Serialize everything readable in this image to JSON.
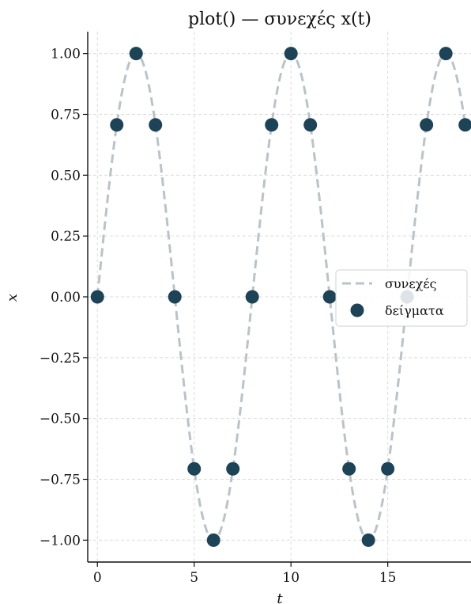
{
  "chart_data": {
    "type": "line",
    "title": "plot() — συνεχές x(t)",
    "xlabel": "t",
    "ylabel": "x",
    "xlim": [
      -0.5,
      19.3
    ],
    "ylim": [
      -1.09,
      1.09
    ],
    "xticks": [
      0,
      5,
      10,
      15
    ],
    "xtick_labels": [
      "0",
      "5",
      "10",
      "15"
    ],
    "yticks": [
      1.0,
      0.75,
      0.5,
      0.25,
      0.0,
      -0.25,
      -0.5,
      -0.75,
      -1.0
    ],
    "ytick_labels": [
      "1.00",
      "0.75",
      "0.50",
      "0.25",
      "0.00",
      "−0.25",
      "−0.50",
      "−0.75",
      "−1.00"
    ],
    "grid": true,
    "legend_position": "center-right",
    "series": [
      {
        "name": "συνεχές",
        "style": "dashed-line",
        "color": "#b9c3c9",
        "function": "sin(pi*t/4)",
        "t_range": [
          0,
          19
        ]
      },
      {
        "name": "δείγματα",
        "style": "markers",
        "color": "#1d4356",
        "x": [
          0,
          1,
          2,
          3,
          4,
          5,
          6,
          7,
          8,
          9,
          10,
          11,
          12,
          13,
          14,
          15,
          16,
          17,
          18,
          19
        ],
        "y": [
          0.0,
          0.707,
          1.0,
          0.707,
          0.0,
          -0.707,
          -1.0,
          -0.707,
          0.0,
          0.707,
          1.0,
          0.707,
          0.0,
          -0.707,
          -1.0,
          -0.707,
          0.0,
          0.707,
          1.0,
          0.707
        ]
      }
    ]
  }
}
